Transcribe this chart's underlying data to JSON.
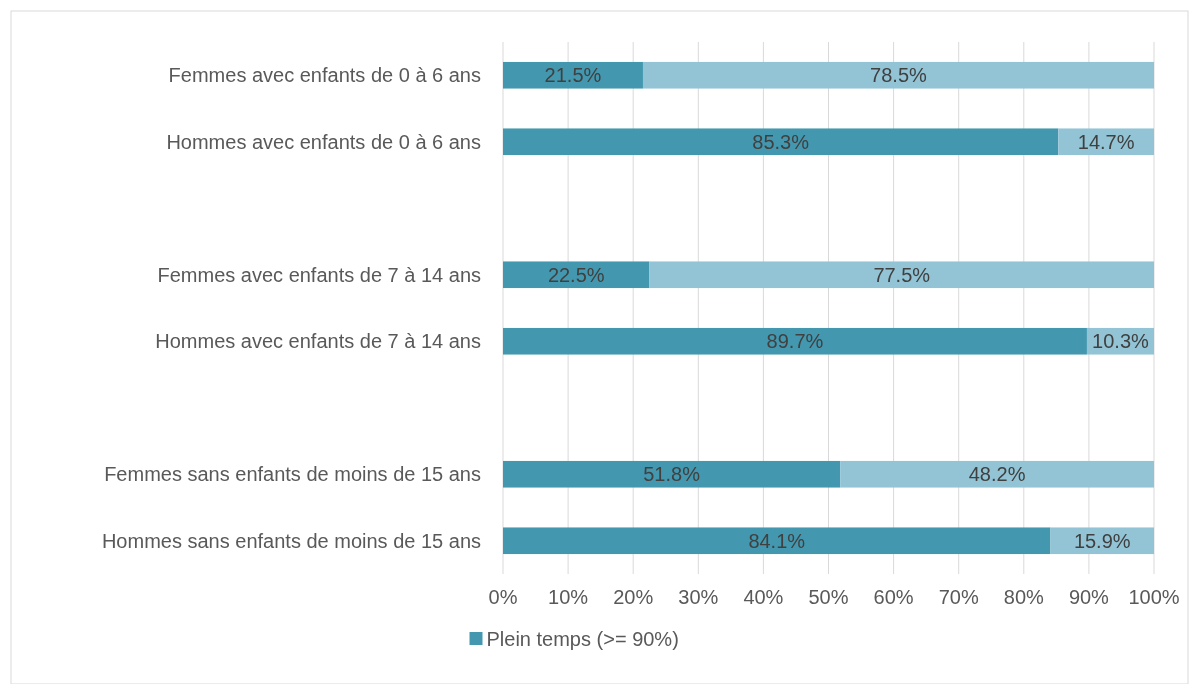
{
  "chart_data": {
    "type": "bar",
    "orientation": "horizontal",
    "stacked": true,
    "categories": [
      "Femmes avec enfants de 0 à 6 ans",
      "Hommes avec enfants de 0 à 6 ans",
      null,
      "Femmes avec enfants de 7 à 14 ans",
      "Hommes avec enfants de 7 à 14 ans",
      null,
      "Femmes sans enfants de moins de 15 ans",
      "Hommes sans enfants de moins de 15 ans"
    ],
    "series": [
      {
        "name": "Plein temps (>= 90%)",
        "color": "#4398b0",
        "values": [
          21.5,
          85.3,
          null,
          22.5,
          89.7,
          null,
          51.8,
          84.1
        ],
        "value_labels": [
          "21.5%",
          "85.3%",
          null,
          "22.5%",
          "89.7%",
          null,
          "51.8%",
          "84.1%"
        ]
      },
      {
        "color": "#92c4d6",
        "values": [
          78.5,
          14.7,
          null,
          77.5,
          10.3,
          null,
          48.2,
          15.9
        ],
        "value_labels": [
          "78.5%",
          "14.7%",
          null,
          "77.5%",
          "10.3%",
          null,
          "48.2%",
          "15.9%"
        ]
      }
    ],
    "xlim": [
      0,
      100
    ],
    "xticks": [
      {
        "value": 0,
        "label": "0%"
      },
      {
        "value": 10,
        "label": "10%"
      },
      {
        "value": 20,
        "label": "20%"
      },
      {
        "value": 30,
        "label": "30%"
      },
      {
        "value": 40,
        "label": "40%"
      },
      {
        "value": 50,
        "label": "50%"
      },
      {
        "value": 60,
        "label": "60%"
      },
      {
        "value": 70,
        "label": "70%"
      },
      {
        "value": 80,
        "label": "80%"
      },
      {
        "value": 90,
        "label": "90%"
      },
      {
        "value": 100,
        "label": "100%"
      }
    ],
    "grid": "x",
    "legend": "bottom"
  }
}
